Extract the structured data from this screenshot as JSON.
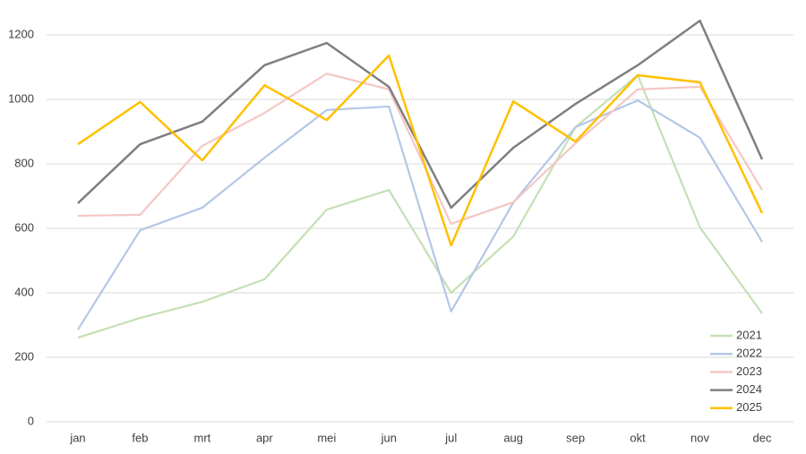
{
  "chart_data": {
    "type": "line",
    "categories": [
      "jan",
      "feb",
      "mrt",
      "apr",
      "mei",
      "jun",
      "jul",
      "aug",
      "sep",
      "okt",
      "nov",
      "dec"
    ],
    "series": [
      {
        "name": "2021",
        "color": "#c5e0b4",
        "values": [
          261,
          322,
          372,
          442,
          658,
          719,
          400,
          575,
          914,
          1075,
          603,
          336
        ]
      },
      {
        "name": "2022",
        "color": "#b4c7e7",
        "values": [
          286,
          594,
          664,
          819,
          967,
          978,
          342,
          680,
          914,
          997,
          881,
          558
        ]
      },
      {
        "name": "2023",
        "color": "#f4c7c3",
        "values": [
          639,
          642,
          856,
          958,
          1080,
          1031,
          614,
          681,
          864,
          1031,
          1039,
          719
        ]
      },
      {
        "name": "2024",
        "color": "#7f7f7f",
        "values": [
          678,
          861,
          931,
          1106,
          1175,
          1039,
          664,
          850,
          986,
          1106,
          1244,
          814
        ]
      },
      {
        "name": "2025",
        "color": "#ffc000",
        "values": [
          861,
          992,
          811,
          1044,
          936,
          1136,
          547,
          994,
          869,
          1075,
          1053,
          647
        ]
      }
    ],
    "ylim": [
      0,
      1300
    ],
    "yticks": [
      0,
      200,
      400,
      600,
      800,
      1000,
      1200
    ],
    "grid": true,
    "legend": "bottom-right"
  }
}
